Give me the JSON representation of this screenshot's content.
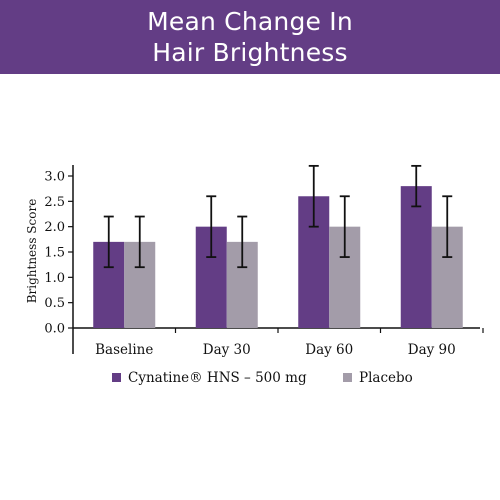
{
  "header": {
    "title_line1": "Mean Change In",
    "title_line2": "Hair Brightness"
  },
  "colors": {
    "banner": "#633d85",
    "series1": "#633d85",
    "series2": "#a39ca9"
  },
  "chart_data": {
    "type": "bar",
    "categories": [
      "Baseline",
      "Day 30",
      "Day 60",
      "Day 90"
    ],
    "series": [
      {
        "name": "Cynatine® HNS – 500 mg",
        "values": [
          1.7,
          2.0,
          2.6,
          2.8
        ],
        "error_low": [
          1.2,
          1.4,
          2.0,
          2.4
        ],
        "error_high": [
          2.2,
          2.6,
          3.2,
          3.2
        ]
      },
      {
        "name": "Placebo",
        "values": [
          1.7,
          1.7,
          2.0,
          2.0
        ],
        "error_low": [
          1.2,
          1.2,
          1.4,
          1.4
        ],
        "error_high": [
          2.2,
          2.2,
          2.6,
          2.6
        ]
      }
    ],
    "ylabel": "Brightness Score",
    "ylim": [
      0,
      3.0
    ],
    "yticks": [
      "0.0",
      "0.5",
      "1.0",
      "1.5",
      "2.0",
      "2.5",
      "3.0"
    ],
    "grid": false,
    "legend": "bottom"
  }
}
